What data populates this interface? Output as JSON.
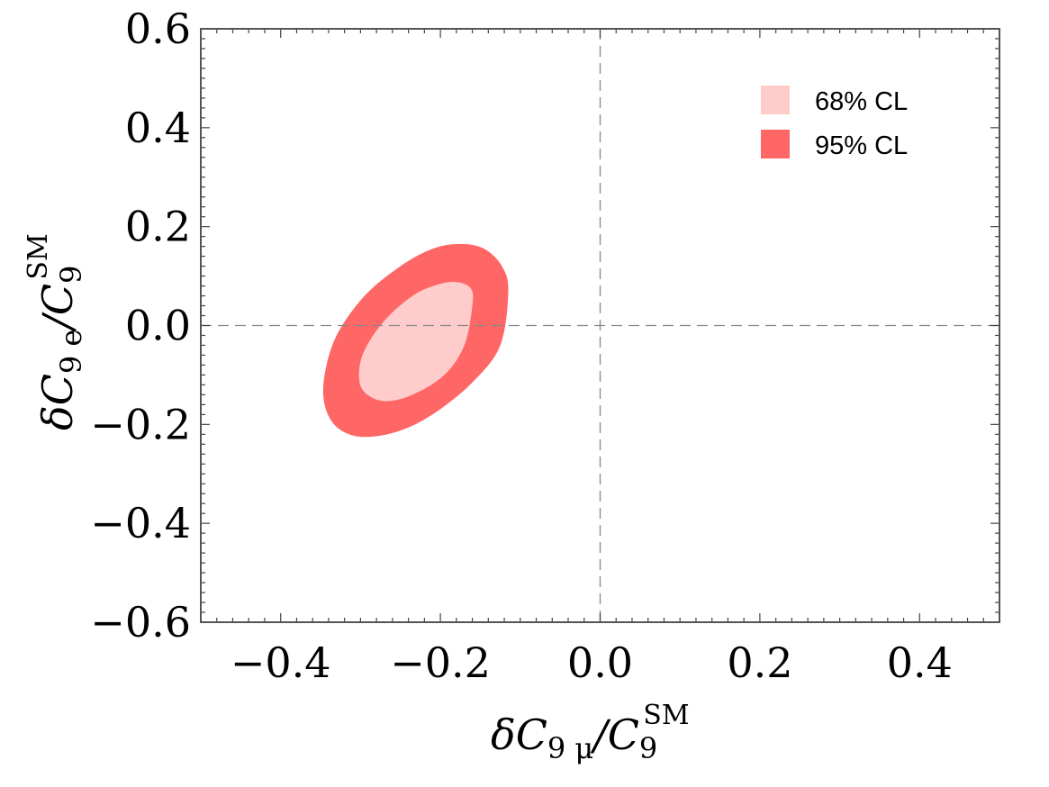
{
  "chart_data": {
    "type": "contour",
    "title": "",
    "xlabel": {
      "prefix": "δC",
      "sub": "9 μ",
      "slash": "/C",
      "sub2": "9",
      "sup": "SM"
    },
    "ylabel": {
      "prefix": "δC",
      "sub": "9 e",
      "slash": "/C",
      "sub2": "9",
      "sup": "SM"
    },
    "xlim": [
      -0.5,
      0.5
    ],
    "ylim": [
      -0.6,
      0.6
    ],
    "xticks": [
      -0.4,
      -0.2,
      0.0,
      0.2,
      0.4
    ],
    "yticks": [
      -0.6,
      -0.4,
      -0.2,
      0.0,
      0.2,
      0.4,
      0.6
    ],
    "xtick_labels": [
      "−0.4",
      "−0.2",
      "0.0",
      "0.2",
      "0.4"
    ],
    "ytick_labels": [
      "−0.6",
      "−0.4",
      "−0.2",
      "0.0",
      "0.2",
      "0.4",
      "0.6"
    ],
    "reference_lines": {
      "x": 0.0,
      "y": 0.0,
      "style": "dashed"
    },
    "regions": [
      {
        "name": "95% CL",
        "color": "#ff6666",
        "boundary": [
          [
            -0.115,
            0.07
          ],
          [
            -0.123,
            0.12
          ],
          [
            -0.145,
            0.155
          ],
          [
            -0.175,
            0.165
          ],
          [
            -0.21,
            0.155
          ],
          [
            -0.25,
            0.12
          ],
          [
            -0.295,
            0.06
          ],
          [
            -0.33,
            -0.02
          ],
          [
            -0.345,
            -0.1
          ],
          [
            -0.345,
            -0.16
          ],
          [
            -0.33,
            -0.205
          ],
          [
            -0.3,
            -0.225
          ],
          [
            -0.255,
            -0.215
          ],
          [
            -0.21,
            -0.18
          ],
          [
            -0.16,
            -0.115
          ],
          [
            -0.125,
            -0.04
          ]
        ]
      },
      {
        "name": "68% CL",
        "color": "#ffcccc",
        "boundary": [
          [
            -0.16,
            0.04
          ],
          [
            -0.162,
            0.075
          ],
          [
            -0.18,
            0.088
          ],
          [
            -0.205,
            0.082
          ],
          [
            -0.235,
            0.06
          ],
          [
            -0.27,
            0.01
          ],
          [
            -0.295,
            -0.05
          ],
          [
            -0.302,
            -0.1
          ],
          [
            -0.295,
            -0.135
          ],
          [
            -0.27,
            -0.153
          ],
          [
            -0.235,
            -0.14
          ],
          [
            -0.195,
            -0.1
          ],
          [
            -0.17,
            -0.04
          ]
        ]
      }
    ],
    "legend": {
      "position": "top-right",
      "entries": [
        "68% CL",
        "95% CL"
      ]
    }
  }
}
